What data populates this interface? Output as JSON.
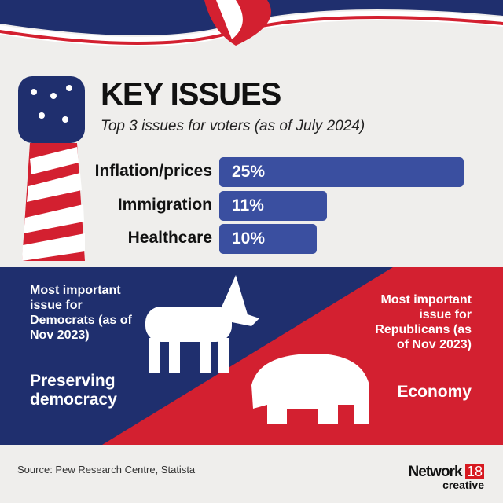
{
  "title": "KEY ISSUES",
  "subtitle": "Top 3 issues for voters (as of July 2024)",
  "chart_data": {
    "type": "bar",
    "orientation": "horizontal",
    "categories": [
      "Inflation/prices",
      "Immigration",
      "Healthcare"
    ],
    "values": [
      25,
      11,
      10
    ],
    "value_labels": [
      "25%",
      "11%",
      "10%"
    ],
    "bar_color": "#3a4fa0"
  },
  "democrats": {
    "label": "Most important issue for Democrats (as of Nov 2023)",
    "issue": "Preserving democracy"
  },
  "republicans": {
    "label": "Most important issue for Republicans (as of Nov 2023)",
    "issue": "Economy"
  },
  "colors": {
    "blue": "#1f2f6e",
    "red": "#d32030"
  },
  "source": "Source: Pew Research Centre, Statista",
  "logo": {
    "name": "Network",
    "num": "18",
    "sub": "creative"
  }
}
